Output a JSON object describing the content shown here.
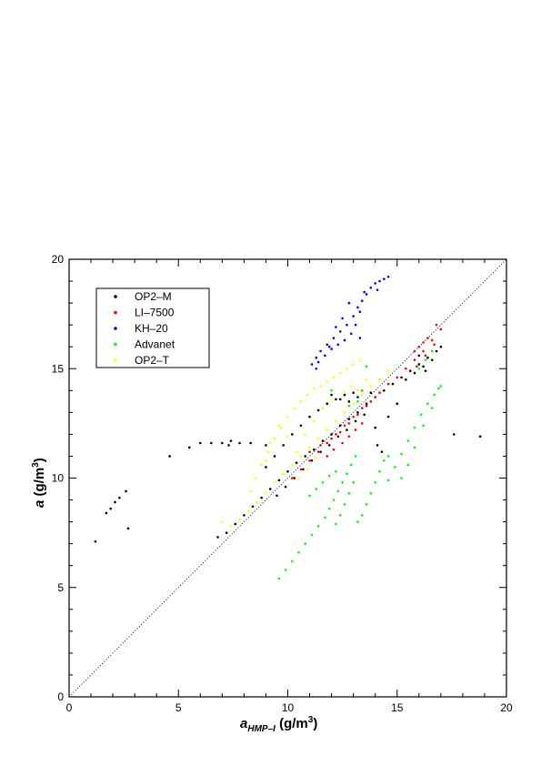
{
  "chart_data": {
    "type": "scatter",
    "title": "",
    "xlabel": {
      "main": "a",
      "sub": "HMP–I",
      "unit": " (g/m",
      "sup": "3",
      "close": ")"
    },
    "ylabel": {
      "main": "a",
      "unit": "  (g/m",
      "sup": "3",
      "close": ")"
    },
    "xlim": [
      0,
      20
    ],
    "ylim": [
      0,
      20
    ],
    "xticks": [
      "0",
      "5",
      "10",
      "15",
      "20"
    ],
    "yticks": [
      "0",
      "5",
      "10",
      "15",
      "20"
    ],
    "grid": false,
    "legend_position": "top-left",
    "reference_line": {
      "style": "dotted",
      "from": [
        0,
        0
      ],
      "to": [
        20,
        20
      ]
    },
    "series": [
      {
        "name": "OP2–M",
        "color": "#000000",
        "points": [
          [
            1.2,
            7.1
          ],
          [
            1.7,
            8.4
          ],
          [
            1.9,
            8.6
          ],
          [
            2.1,
            8.9
          ],
          [
            2.3,
            9.1
          ],
          [
            2.6,
            9.4
          ],
          [
            2.7,
            7.7
          ],
          [
            4.6,
            11.0
          ],
          [
            5.5,
            11.4
          ],
          [
            6.0,
            11.6
          ],
          [
            6.5,
            11.6
          ],
          [
            7.0,
            11.6
          ],
          [
            7.3,
            11.5
          ],
          [
            7.4,
            11.7
          ],
          [
            7.8,
            11.6
          ],
          [
            8.3,
            11.6
          ],
          [
            9.0,
            11.5
          ],
          [
            6.8,
            7.3
          ],
          [
            7.2,
            7.5
          ],
          [
            7.6,
            7.9
          ],
          [
            8.0,
            8.3
          ],
          [
            8.4,
            8.7
          ],
          [
            8.8,
            9.1
          ],
          [
            9.2,
            9.5
          ],
          [
            9.6,
            9.9
          ],
          [
            10.0,
            10.3
          ],
          [
            10.4,
            10.7
          ],
          [
            10.8,
            11.0
          ],
          [
            11.2,
            11.3
          ],
          [
            11.6,
            11.7
          ],
          [
            12.0,
            12.0
          ],
          [
            12.4,
            12.4
          ],
          [
            12.8,
            12.7
          ],
          [
            13.2,
            13.0
          ],
          [
            13.6,
            13.3
          ],
          [
            14.0,
            13.7
          ],
          [
            14.4,
            14.0
          ],
          [
            14.8,
            14.3
          ],
          [
            15.2,
            14.6
          ],
          [
            15.6,
            14.9
          ],
          [
            16.0,
            15.2
          ],
          [
            16.4,
            15.5
          ],
          [
            16.8,
            15.8
          ],
          [
            17.0,
            16.0
          ],
          [
            9.0,
            10.5
          ],
          [
            9.4,
            11.0
          ],
          [
            9.8,
            11.5
          ],
          [
            10.2,
            12.0
          ],
          [
            10.6,
            12.4
          ],
          [
            11.0,
            12.8
          ],
          [
            11.4,
            13.1
          ],
          [
            11.8,
            13.4
          ],
          [
            12.2,
            13.6
          ],
          [
            12.6,
            13.8
          ],
          [
            13.0,
            13.9
          ],
          [
            13.4,
            14.0
          ],
          [
            13.8,
            13.9
          ],
          [
            9.5,
            9.2
          ],
          [
            9.9,
            9.6
          ],
          [
            10.3,
            10.0
          ],
          [
            10.7,
            10.4
          ],
          [
            11.1,
            10.8
          ],
          [
            11.5,
            11.2
          ],
          [
            11.9,
            11.5
          ],
          [
            12.3,
            11.9
          ],
          [
            12.7,
            12.2
          ],
          [
            13.1,
            12.6
          ],
          [
            13.5,
            12.9
          ],
          [
            14.1,
            11.5
          ],
          [
            14.3,
            11.2
          ],
          [
            14.0,
            12.3
          ],
          [
            14.6,
            12.8
          ],
          [
            15.0,
            13.4
          ],
          [
            15.4,
            14.5
          ],
          [
            15.8,
            14.8
          ],
          [
            16.2,
            15.1
          ],
          [
            16.6,
            15.4
          ],
          [
            12.0,
            13.8
          ],
          [
            12.4,
            13.6
          ],
          [
            12.8,
            13.5
          ],
          [
            13.2,
            13.7
          ],
          [
            13.6,
            13.4
          ],
          [
            17.6,
            12.0
          ],
          [
            18.8,
            11.9
          ],
          [
            16.0,
            15.6
          ],
          [
            16.3,
            14.9
          ]
        ]
      },
      {
        "name": "LI–7500",
        "color": "#ff0000",
        "points": [
          [
            10.2,
            10.0
          ],
          [
            10.6,
            10.4
          ],
          [
            11.0,
            10.8
          ],
          [
            11.4,
            11.2
          ],
          [
            11.8,
            11.6
          ],
          [
            12.2,
            12.0
          ],
          [
            12.6,
            12.4
          ],
          [
            13.0,
            12.8
          ],
          [
            13.4,
            13.2
          ],
          [
            13.8,
            13.5
          ],
          [
            14.2,
            13.9
          ],
          [
            14.6,
            14.3
          ],
          [
            15.0,
            14.6
          ],
          [
            15.4,
            15.0
          ],
          [
            15.8,
            15.4
          ],
          [
            16.2,
            15.8
          ],
          [
            16.6,
            16.3
          ],
          [
            17.0,
            16.8
          ],
          [
            16.0,
            16.0
          ],
          [
            16.4,
            16.4
          ],
          [
            16.8,
            17.0
          ],
          [
            15.8,
            15.8
          ],
          [
            16.2,
            16.2
          ],
          [
            11.0,
            11.2
          ],
          [
            11.5,
            11.5
          ],
          [
            12.0,
            11.8
          ],
          [
            12.4,
            12.1
          ],
          [
            12.8,
            12.5
          ],
          [
            13.2,
            12.9
          ],
          [
            13.6,
            13.3
          ],
          [
            14.0,
            13.7
          ],
          [
            12.5,
            11.6
          ],
          [
            12.8,
            11.9
          ],
          [
            13.1,
            12.2
          ],
          [
            13.4,
            12.5
          ],
          [
            11.8,
            11.0
          ],
          [
            12.1,
            11.3
          ],
          [
            15.9,
            15.1
          ],
          [
            16.3,
            15.6
          ],
          [
            16.7,
            16.1
          ]
        ]
      },
      {
        "name": "KH–20",
        "color": "#0000ff",
        "points": [
          [
            11.1,
            15.2
          ],
          [
            11.3,
            15.5
          ],
          [
            11.5,
            15.8
          ],
          [
            11.8,
            16.1
          ],
          [
            12.1,
            16.4
          ],
          [
            12.4,
            16.7
          ],
          [
            12.7,
            17.0
          ],
          [
            13.0,
            17.4
          ],
          [
            13.2,
            17.8
          ],
          [
            13.4,
            18.1
          ],
          [
            13.6,
            18.4
          ],
          [
            13.8,
            18.7
          ],
          [
            14.0,
            18.9
          ],
          [
            14.2,
            19.0
          ],
          [
            14.4,
            19.1
          ],
          [
            14.6,
            19.2
          ],
          [
            11.4,
            15.3
          ],
          [
            11.7,
            15.6
          ],
          [
            12.0,
            15.9
          ],
          [
            12.3,
            16.1
          ],
          [
            12.6,
            16.3
          ],
          [
            12.9,
            16.6
          ],
          [
            13.1,
            17.0
          ],
          [
            13.3,
            16.4
          ],
          [
            12.5,
            17.3
          ],
          [
            12.2,
            16.9
          ],
          [
            11.9,
            16.0
          ],
          [
            12.8,
            18.0
          ],
          [
            13.5,
            18.5
          ],
          [
            14.1,
            18.6
          ],
          [
            11.3,
            15.0
          ],
          [
            13.3,
            17.6
          ]
        ]
      },
      {
        "name": "Advanet",
        "color": "#00ff00",
        "points": [
          [
            9.6,
            5.4
          ],
          [
            9.9,
            5.8
          ],
          [
            10.2,
            6.2
          ],
          [
            10.5,
            6.6
          ],
          [
            10.8,
            7.0
          ],
          [
            11.1,
            7.4
          ],
          [
            11.4,
            7.8
          ],
          [
            11.7,
            8.2
          ],
          [
            11.9,
            8.6
          ],
          [
            12.1,
            9.0
          ],
          [
            12.3,
            9.4
          ],
          [
            12.5,
            9.8
          ],
          [
            12.7,
            10.2
          ],
          [
            12.9,
            10.6
          ],
          [
            13.1,
            11.0
          ],
          [
            11.0,
            9.2
          ],
          [
            11.3,
            9.5
          ],
          [
            11.6,
            9.8
          ],
          [
            11.9,
            10.1
          ],
          [
            12.2,
            10.3
          ],
          [
            12.2,
            7.9
          ],
          [
            12.4,
            8.3
          ],
          [
            12.6,
            8.8
          ],
          [
            12.8,
            9.3
          ],
          [
            13.0,
            9.8
          ],
          [
            13.2,
            8.0
          ],
          [
            13.4,
            8.3
          ],
          [
            13.6,
            8.8
          ],
          [
            13.8,
            9.3
          ],
          [
            14.0,
            9.8
          ],
          [
            14.2,
            10.3
          ],
          [
            14.4,
            10.8
          ],
          [
            14.6,
            11.0
          ],
          [
            14.6,
            9.9
          ],
          [
            14.9,
            10.5
          ],
          [
            15.2,
            11.1
          ],
          [
            15.5,
            11.7
          ],
          [
            15.8,
            12.3
          ],
          [
            16.1,
            12.9
          ],
          [
            16.4,
            13.4
          ],
          [
            16.7,
            13.8
          ],
          [
            16.9,
            14.1
          ],
          [
            17.0,
            14.2
          ],
          [
            15.2,
            10.0
          ],
          [
            15.5,
            10.6
          ],
          [
            15.8,
            11.4
          ],
          [
            16.2,
            12.4
          ],
          [
            16.6,
            13.2
          ],
          [
            13.4,
            14.0
          ],
          [
            13.6,
            15.1
          ],
          [
            13.2,
            13.5
          ],
          [
            12.8,
            13.3
          ],
          [
            16.3,
            15.4
          ],
          [
            16.0,
            15.0
          ],
          [
            16.6,
            15.8
          ],
          [
            12.0,
            14.0
          ]
        ]
      },
      {
        "name": "OP2–T",
        "color": "#ffff00",
        "points": [
          [
            7.0,
            8.0
          ],
          [
            7.4,
            7.8
          ],
          [
            7.8,
            8.1
          ],
          [
            8.2,
            8.5
          ],
          [
            8.6,
            8.9
          ],
          [
            9.0,
            9.3
          ],
          [
            9.4,
            9.8
          ],
          [
            9.8,
            10.2
          ],
          [
            10.2,
            10.6
          ],
          [
            10.6,
            11.0
          ],
          [
            11.0,
            11.4
          ],
          [
            11.4,
            11.8
          ],
          [
            11.8,
            12.2
          ],
          [
            12.2,
            12.6
          ],
          [
            12.6,
            13.0
          ],
          [
            13.0,
            13.4
          ],
          [
            13.4,
            13.8
          ],
          [
            13.8,
            14.2
          ],
          [
            14.2,
            14.5
          ],
          [
            14.6,
            14.9
          ],
          [
            8.5,
            10.0
          ],
          [
            8.8,
            10.6
          ],
          [
            9.1,
            11.2
          ],
          [
            9.4,
            11.8
          ],
          [
            9.7,
            12.3
          ],
          [
            10.0,
            12.8
          ],
          [
            10.3,
            13.2
          ],
          [
            10.6,
            13.5
          ],
          [
            10.9,
            13.8
          ],
          [
            11.2,
            14.1
          ],
          [
            11.5,
            14.2
          ],
          [
            11.8,
            14.4
          ],
          [
            12.1,
            14.6
          ],
          [
            12.4,
            14.8
          ],
          [
            12.7,
            15.0
          ],
          [
            13.0,
            15.2
          ],
          [
            13.3,
            15.4
          ],
          [
            9.2,
            11.6
          ],
          [
            9.6,
            12.4
          ],
          [
            10.0,
            11.9
          ],
          [
            10.4,
            11.2
          ],
          [
            10.8,
            12.0
          ],
          [
            11.2,
            12.6
          ],
          [
            11.6,
            13.2
          ],
          [
            12.0,
            13.6
          ],
          [
            10.5,
            10.0
          ],
          [
            10.9,
            10.4
          ],
          [
            11.3,
            10.9
          ],
          [
            9.0,
            10.8
          ],
          [
            8.3,
            9.4
          ],
          [
            12.6,
            13.9
          ],
          [
            13.2,
            14.0
          ],
          [
            13.6,
            14.5
          ],
          [
            12.9,
            14.2
          ]
        ]
      }
    ]
  }
}
